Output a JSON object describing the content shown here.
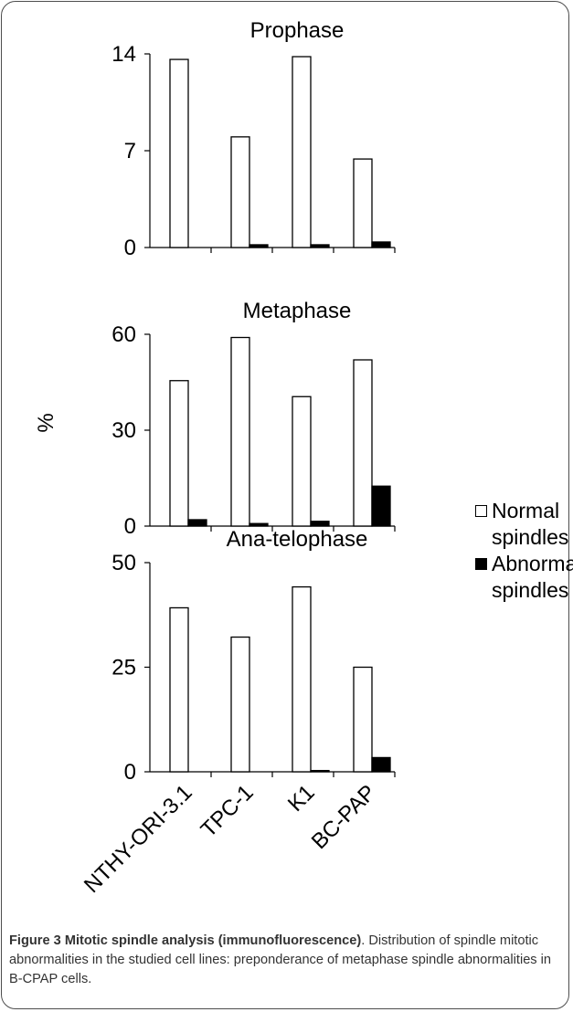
{
  "chart_data": [
    {
      "type": "bar",
      "title": "Prophase",
      "categories": [
        "NTHY-ORI-3.1",
        "TPC-1",
        "K1",
        "BC-PAP"
      ],
      "ylim": [
        0,
        14
      ],
      "yticks": [
        "0",
        "7",
        "14"
      ],
      "series": [
        {
          "name": "Normal spindles",
          "values": [
            13.6,
            8.0,
            13.8,
            6.4
          ],
          "color": "#ffffff"
        },
        {
          "name": "Abnormal spindles",
          "values": [
            0,
            0.2,
            0.2,
            0.4
          ],
          "color": "#000000"
        }
      ]
    },
    {
      "type": "bar",
      "title": "Metaphase",
      "categories": [
        "NTHY-ORI-3.1",
        "TPC-1",
        "K1",
        "BC-PAP"
      ],
      "ylim": [
        0,
        60
      ],
      "yticks": [
        "0",
        "30",
        "60"
      ],
      "series": [
        {
          "name": "Normal spindles",
          "values": [
            45.5,
            59,
            40.5,
            52
          ],
          "color": "#ffffff"
        },
        {
          "name": "Abnormal spindles",
          "values": [
            2,
            0.8,
            1.5,
            12.5
          ],
          "color": "#000000"
        }
      ]
    },
    {
      "type": "bar",
      "title": "Ana-telophase",
      "categories": [
        "NTHY-ORI-3.1",
        "TPC-1",
        "K1",
        "BC-PAP"
      ],
      "ylim": [
        0,
        50
      ],
      "yticks": [
        "0",
        "25",
        "50"
      ],
      "series": [
        {
          "name": "Normal spindles",
          "values": [
            39.2,
            32.2,
            44.2,
            25.0
          ],
          "color": "#ffffff"
        },
        {
          "name": "Abnormal spindles",
          "values": [
            0,
            0,
            0.3,
            3.4
          ],
          "color": "#000000"
        }
      ]
    }
  ],
  "ylabel": "%",
  "xtick_labels": [
    "NTHY-ORI-3.1",
    "TPC-1",
    "K1",
    "BC-PAP"
  ],
  "legend": {
    "normal_line1": "Normal",
    "normal_line2": "spindles",
    "abnormal_line1": "Abnormal",
    "abnormal_line2": "spindles"
  },
  "caption": {
    "title": "Figure 3 Mitotic spindle analysis (immunofluorescence)",
    "end": ".",
    "text": "Distribution of spindle mitotic abnormalities in the studied cell lines: preponderance of metaphase spindle abnormalities in B-CPAP cells."
  }
}
